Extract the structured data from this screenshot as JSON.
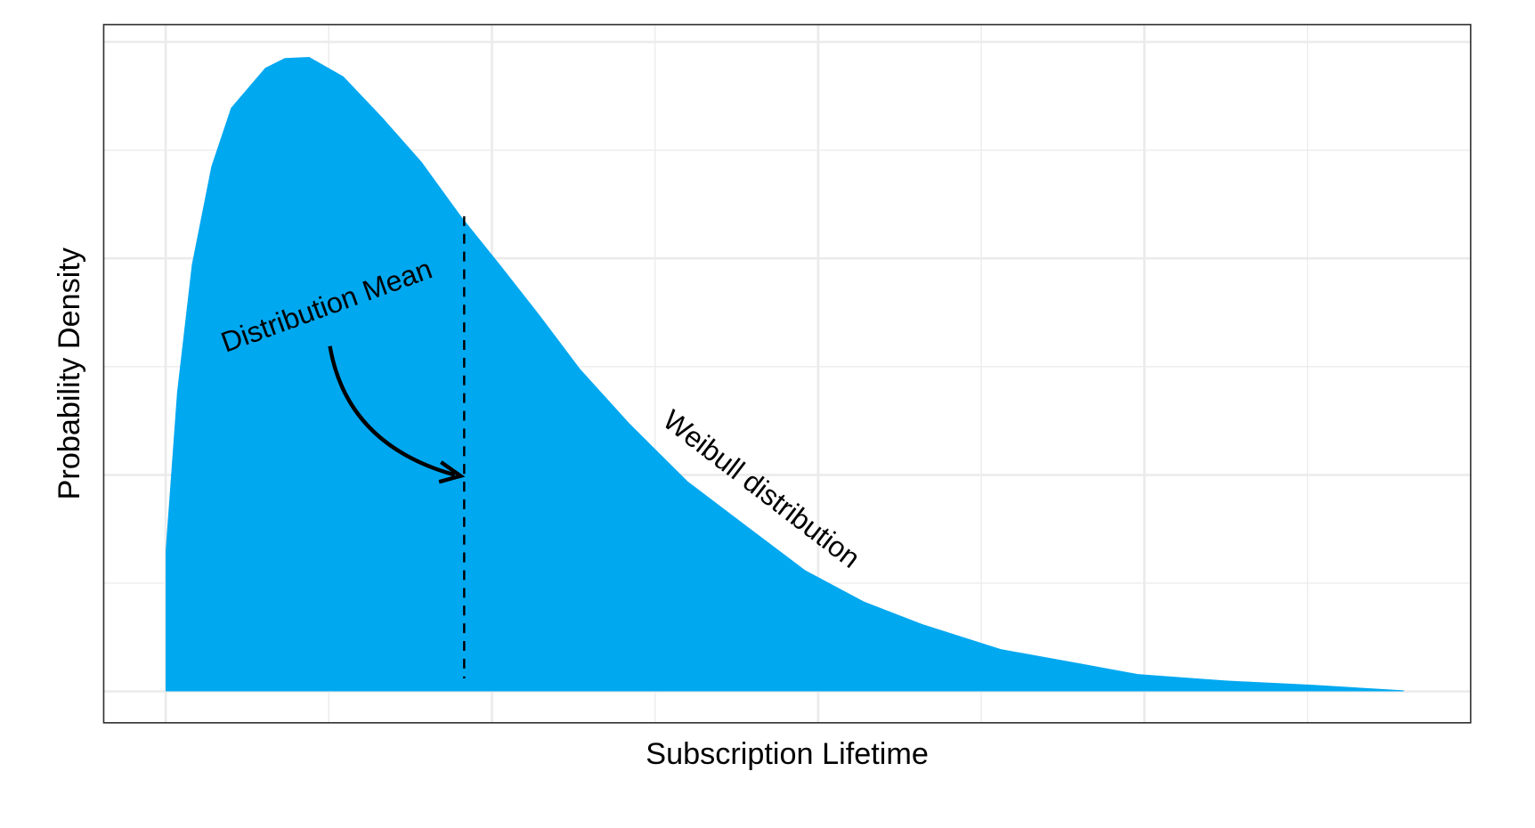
{
  "chart_data": {
    "type": "area",
    "title": "",
    "xlabel": "Subscription Lifetime",
    "ylabel": "Probability Density",
    "xlim": [
      -0.38,
      8.0
    ],
    "ylim": [
      -0.29,
      6.16
    ],
    "grid": true,
    "x_tick_labels": [],
    "y_tick_labels": [],
    "fill_color": "#00A8F0",
    "series": [
      {
        "name": "Weibull distribution",
        "x": [
          0,
          0,
          0.07,
          0.16,
          0.28,
          0.4,
          0.61,
          0.73,
          0.88,
          1.09,
          1.33,
          1.57,
          1.81,
          2.05,
          2.29,
          2.54,
          2.84,
          3.2,
          3.56,
          3.92,
          4.28,
          4.64,
          5.12,
          5.6,
          5.96,
          6.5,
          7.04,
          7.59
        ],
        "y": [
          0,
          1.3,
          2.76,
          3.94,
          4.85,
          5.39,
          5.76,
          5.85,
          5.86,
          5.68,
          5.3,
          4.89,
          4.39,
          3.94,
          3.48,
          2.98,
          2.48,
          1.94,
          1.53,
          1.12,
          0.83,
          0.62,
          0.39,
          0.26,
          0.16,
          0.1,
          0.06,
          0.01
        ]
      }
    ],
    "mean_line": {
      "x": 1.83,
      "style": "dashed"
    },
    "annotations": [
      {
        "text": "Distribution Mean"
      },
      {
        "text": "Weibull distribution"
      }
    ]
  }
}
